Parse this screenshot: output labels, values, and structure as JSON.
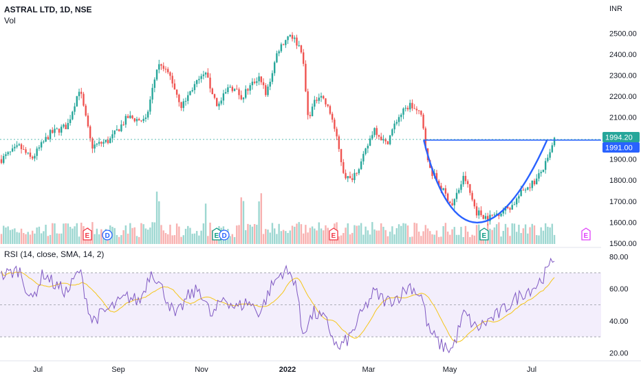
{
  "header": {
    "symbol_line": "ASTRAL LTD, 1D, NSE",
    "volume_label": "Vol",
    "currency": "INR"
  },
  "rsi_panel": {
    "label": "RSI (14, close, SMA, 14, 2)",
    "ticks": [
      "80.00",
      "60.00",
      "40.00",
      "20.00"
    ]
  },
  "price_axis_ticks": [
    "2500.00",
    "2400.00",
    "2300.00",
    "2200.00",
    "2100.00",
    "2000.00",
    "1900.00",
    "1800.00",
    "1700.00",
    "1600.00",
    "1500.00"
  ],
  "time_axis_labels": [
    "Jul",
    "Sep",
    "Nov",
    "2022",
    "Mar",
    "May",
    "Jul"
  ],
  "price_tags": {
    "last": "1994.20",
    "level": "1991.00"
  },
  "event_badges": [
    {
      "letter": "E",
      "color": "#f23645"
    },
    {
      "letter": "D",
      "color": "#2962ff"
    },
    {
      "letter": "E",
      "color": "#089981"
    },
    {
      "letter": "D",
      "color": "#2962ff"
    },
    {
      "letter": "E",
      "color": "#f23645"
    },
    {
      "letter": "E",
      "color": "#089981"
    },
    {
      "letter": "E",
      "color": "#e040fb"
    }
  ],
  "colors": {
    "up": "#26a69a",
    "down": "#ef5350",
    "pattern": "#2962ff",
    "rsi_line": "#7e57c2",
    "rsi_ma": "#f5c518",
    "rsi_band": "#f3eefc"
  },
  "chart_data": {
    "type": "candlestick",
    "symbol": "ASTRAL LTD",
    "interval": "1D",
    "exchange": "NSE",
    "price_range": [
      1480,
      2560
    ],
    "rsi_range": [
      15,
      85
    ],
    "rsi_levels": [
      70,
      50,
      30
    ],
    "resistance_level": 1991.0,
    "last_price": 1994.2,
    "price_anchors": [
      {
        "t": 0.0,
        "p": 1900
      },
      {
        "t": 0.03,
        "p": 1960
      },
      {
        "t": 0.05,
        "p": 1900
      },
      {
        "t": 0.08,
        "p": 2020
      },
      {
        "t": 0.11,
        "p": 2060
      },
      {
        "t": 0.13,
        "p": 2240
      },
      {
        "t": 0.15,
        "p": 1960
      },
      {
        "t": 0.18,
        "p": 1990
      },
      {
        "t": 0.21,
        "p": 2100
      },
      {
        "t": 0.24,
        "p": 2080
      },
      {
        "t": 0.26,
        "p": 2350
      },
      {
        "t": 0.28,
        "p": 2300
      },
      {
        "t": 0.3,
        "p": 2150
      },
      {
        "t": 0.32,
        "p": 2250
      },
      {
        "t": 0.34,
        "p": 2300
      },
      {
        "t": 0.36,
        "p": 2150
      },
      {
        "t": 0.38,
        "p": 2250
      },
      {
        "t": 0.4,
        "p": 2200
      },
      {
        "t": 0.43,
        "p": 2300
      },
      {
        "t": 0.44,
        "p": 2200
      },
      {
        "t": 0.46,
        "p": 2420
      },
      {
        "t": 0.48,
        "p": 2500
      },
      {
        "t": 0.5,
        "p": 2420
      },
      {
        "t": 0.51,
        "p": 2100
      },
      {
        "t": 0.53,
        "p": 2220
      },
      {
        "t": 0.55,
        "p": 2100
      },
      {
        "t": 0.57,
        "p": 1830
      },
      {
        "t": 0.58,
        "p": 1800
      },
      {
        "t": 0.6,
        "p": 1890
      },
      {
        "t": 0.62,
        "p": 2050
      },
      {
        "t": 0.64,
        "p": 1970
      },
      {
        "t": 0.66,
        "p": 2100
      },
      {
        "t": 0.68,
        "p": 2160
      },
      {
        "t": 0.7,
        "p": 2100
      },
      {
        "t": 0.71,
        "p": 1870
      },
      {
        "t": 0.73,
        "p": 1770
      },
      {
        "t": 0.75,
        "p": 1680
      },
      {
        "t": 0.77,
        "p": 1820
      },
      {
        "t": 0.79,
        "p": 1650
      },
      {
        "t": 0.81,
        "p": 1620
      },
      {
        "t": 0.83,
        "p": 1650
      },
      {
        "t": 0.85,
        "p": 1680
      },
      {
        "t": 0.87,
        "p": 1760
      },
      {
        "t": 0.89,
        "p": 1800
      },
      {
        "t": 0.91,
        "p": 1900
      },
      {
        "t": 0.92,
        "p": 1994
      }
    ],
    "rsi_anchors": [
      {
        "t": 0.0,
        "v": 68
      },
      {
        "t": 0.03,
        "v": 72
      },
      {
        "t": 0.05,
        "v": 52
      },
      {
        "t": 0.07,
        "v": 70
      },
      {
        "t": 0.09,
        "v": 62
      },
      {
        "t": 0.11,
        "v": 58
      },
      {
        "t": 0.13,
        "v": 72
      },
      {
        "t": 0.15,
        "v": 40
      },
      {
        "t": 0.17,
        "v": 45
      },
      {
        "t": 0.19,
        "v": 50
      },
      {
        "t": 0.21,
        "v": 55
      },
      {
        "t": 0.23,
        "v": 52
      },
      {
        "t": 0.25,
        "v": 72
      },
      {
        "t": 0.27,
        "v": 58
      },
      {
        "t": 0.29,
        "v": 42
      },
      {
        "t": 0.31,
        "v": 55
      },
      {
        "t": 0.33,
        "v": 60
      },
      {
        "t": 0.35,
        "v": 42
      },
      {
        "t": 0.37,
        "v": 55
      },
      {
        "t": 0.39,
        "v": 48
      },
      {
        "t": 0.41,
        "v": 52
      },
      {
        "t": 0.43,
        "v": 45
      },
      {
        "t": 0.45,
        "v": 62
      },
      {
        "t": 0.47,
        "v": 72
      },
      {
        "t": 0.49,
        "v": 65
      },
      {
        "t": 0.5,
        "v": 32
      },
      {
        "t": 0.52,
        "v": 45
      },
      {
        "t": 0.54,
        "v": 40
      },
      {
        "t": 0.56,
        "v": 22
      },
      {
        "t": 0.58,
        "v": 30
      },
      {
        "t": 0.6,
        "v": 45
      },
      {
        "t": 0.62,
        "v": 58
      },
      {
        "t": 0.64,
        "v": 52
      },
      {
        "t": 0.66,
        "v": 55
      },
      {
        "t": 0.68,
        "v": 62
      },
      {
        "t": 0.7,
        "v": 55
      },
      {
        "t": 0.71,
        "v": 35
      },
      {
        "t": 0.73,
        "v": 25
      },
      {
        "t": 0.75,
        "v": 22
      },
      {
        "t": 0.77,
        "v": 45
      },
      {
        "t": 0.79,
        "v": 35
      },
      {
        "t": 0.81,
        "v": 40
      },
      {
        "t": 0.83,
        "v": 45
      },
      {
        "t": 0.85,
        "v": 52
      },
      {
        "t": 0.87,
        "v": 58
      },
      {
        "t": 0.89,
        "v": 62
      },
      {
        "t": 0.91,
        "v": 72
      },
      {
        "t": 0.92,
        "v": 80
      }
    ],
    "volume_spike_points": [
      0.26,
      0.34,
      0.4,
      0.43
    ]
  }
}
